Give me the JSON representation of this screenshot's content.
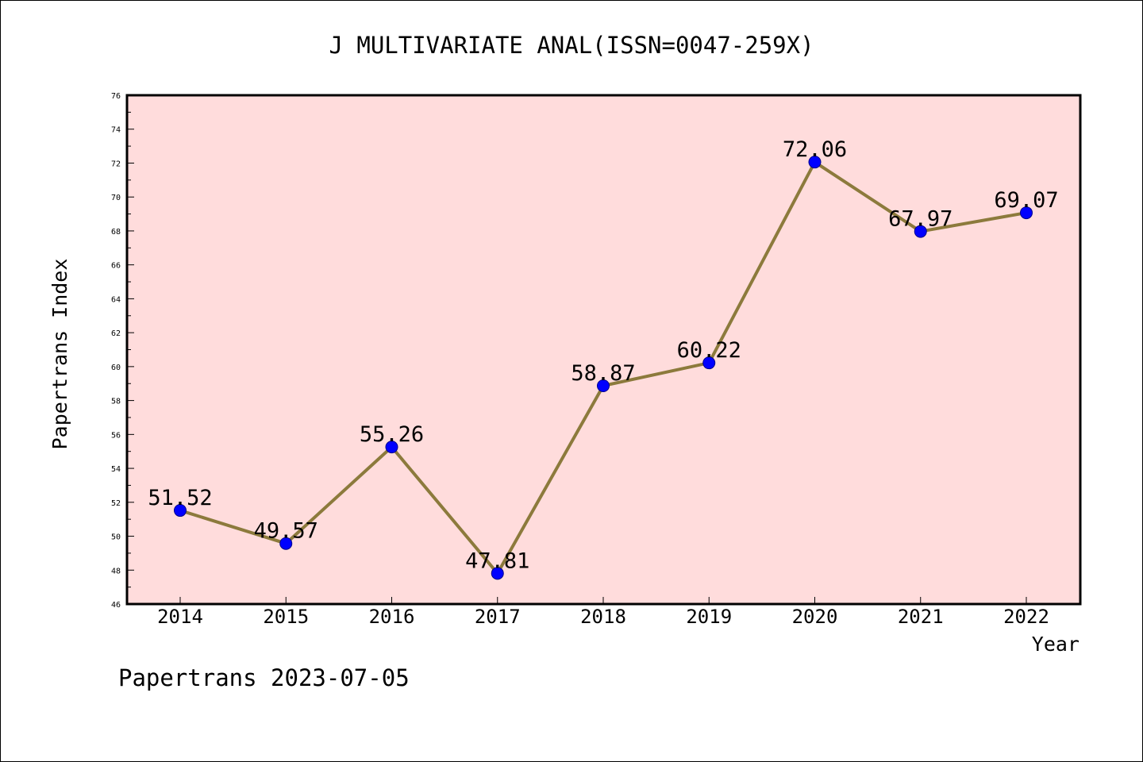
{
  "chart_data": {
    "type": "line",
    "title": "J MULTIVARIATE ANAL(ISSN=0047-259X)",
    "xlabel": "Year",
    "ylabel": "Papertrans Index",
    "categories": [
      "2014",
      "2015",
      "2016",
      "2017",
      "2018",
      "2019",
      "2020",
      "2021",
      "2022"
    ],
    "values": [
      51.52,
      49.57,
      55.26,
      47.81,
      58.87,
      60.22,
      72.06,
      67.97,
      69.07
    ],
    "data_labels": [
      "51.52",
      "49.57",
      "55.26",
      "47.81",
      "58.87",
      "60.22",
      "72.06",
      "67.97",
      "69.07"
    ],
    "ylim": [
      46,
      76
    ],
    "yticks": [
      "46",
      "48",
      "50",
      "52",
      "54",
      "56",
      "58",
      "60",
      "62",
      "64",
      "66",
      "68",
      "70",
      "72",
      "74",
      "76"
    ],
    "grid": false,
    "legend": "none",
    "colors": {
      "plot_background": "#ffdcdc",
      "line": "#8c7a3c",
      "marker": "#0000ff"
    }
  },
  "footer": {
    "text": "Papertrans 2023-07-05"
  }
}
